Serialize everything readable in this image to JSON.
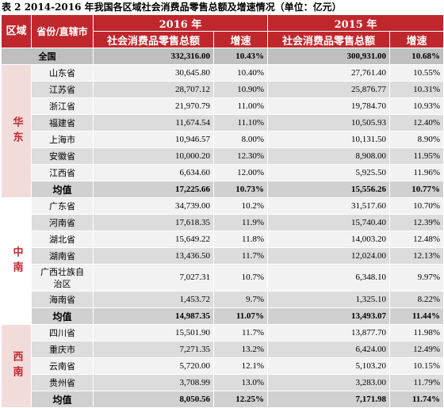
{
  "title": "表 2   2014-2016 年我国各区域社会消费品零售总额及增速情况（单位：亿元）",
  "header": {
    "region": "区域",
    "province": "省份/直辖市",
    "year2016": "2016 年",
    "year2015": "2015 年",
    "retail_total": "社会消费品零售总额",
    "growth": "增速"
  },
  "national": {
    "name": "全国",
    "v2016": "332,316.00",
    "g2016": "10.43%",
    "v2015": "300,931.00",
    "g2015": "10.68%"
  },
  "regions": [
    {
      "name": "华东",
      "rows": [
        {
          "name": "山东省",
          "v2016": "30,645.80",
          "g2016": "10.40%",
          "v2015": "27,761.40",
          "g2015": "10.55%"
        },
        {
          "name": "江苏省",
          "v2016": "28,707.12",
          "g2016": "10.90%",
          "v2015": "25,876.77",
          "g2015": "10.31%"
        },
        {
          "name": "浙江省",
          "v2016": "21,970.79",
          "g2016": "11.00%",
          "v2015": "19,784.70",
          "g2015": "10.93%"
        },
        {
          "name": "福建省",
          "v2016": "11,674.54",
          "g2016": "11.10%",
          "v2015": "10,505.93",
          "g2015": "12.40%"
        },
        {
          "name": "上海市",
          "v2016": "10,946.57",
          "g2016": "8.00%",
          "v2015": "10,131.50",
          "g2015": "8.90%"
        },
        {
          "name": "安徽省",
          "v2016": "10,000.20",
          "g2016": "12.30%",
          "v2015": "8,908.00",
          "g2015": "11.95%"
        },
        {
          "name": "江西省",
          "v2016": "6,634.60",
          "g2016": "12.00%",
          "v2015": "5,925.50",
          "g2015": "11.96%"
        }
      ],
      "avg": {
        "name": "均值",
        "v2016": "17,225.66",
        "g2016": "10.73%",
        "v2015": "15,556.26",
        "g2015": "10.77%"
      }
    },
    {
      "name": "中南",
      "rows": [
        {
          "name": "广东省",
          "v2016": "34,739.00",
          "g2016": "10.2%",
          "v2015": "31,517.60",
          "g2015": "10.70%"
        },
        {
          "name": "河南省",
          "v2016": "17,618.35",
          "g2016": "11.9%",
          "v2015": "15,740.40",
          "g2015": "12.39%"
        },
        {
          "name": "湖北省",
          "v2016": "15,649.22",
          "g2016": "11.8%",
          "v2015": "14,003.20",
          "g2015": "12.48%"
        },
        {
          "name": "湖南省",
          "v2016": "13,436.50",
          "g2016": "11.7%",
          "v2015": "12,024.00",
          "g2015": "12.13%"
        },
        {
          "name": "广西壮族自治区",
          "v2016": "7,027.31",
          "g2016": "10.7%",
          "v2015": "6,348.10",
          "g2015": "9.97%"
        },
        {
          "name": "海南省",
          "v2016": "1,453.72",
          "g2016": "9.7%",
          "v2015": "1,325.10",
          "g2015": "8.22%"
        }
      ],
      "avg": {
        "name": "均值",
        "v2016": "14,987.35",
        "g2016": "11.07%",
        "v2015": "13,493.07",
        "g2015": "11.44%"
      }
    },
    {
      "name": "西南",
      "rows": [
        {
          "name": "四川省",
          "v2016": "15,501.90",
          "g2016": "11.7%",
          "v2015": "13,877.70",
          "g2015": "11.98%"
        },
        {
          "name": "重庆市",
          "v2016": "7,271.35",
          "g2016": "13.2%",
          "v2015": "6,424.00",
          "g2015": "12.49%"
        },
        {
          "name": "云南省",
          "v2016": "5,720.00",
          "g2016": "12.1%",
          "v2015": "5,103.20",
          "g2015": "10.15%"
        },
        {
          "name": "贵州省",
          "v2016": "3,708.99",
          "g2016": "13.0%",
          "v2015": "3,283.00",
          "g2015": "11.79%"
        }
      ],
      "avg": {
        "name": "均值",
        "v2016": "8,050.56",
        "g2016": "12.25%",
        "v2015": "7,171.98",
        "g2015": "11.74%"
      }
    }
  ]
}
